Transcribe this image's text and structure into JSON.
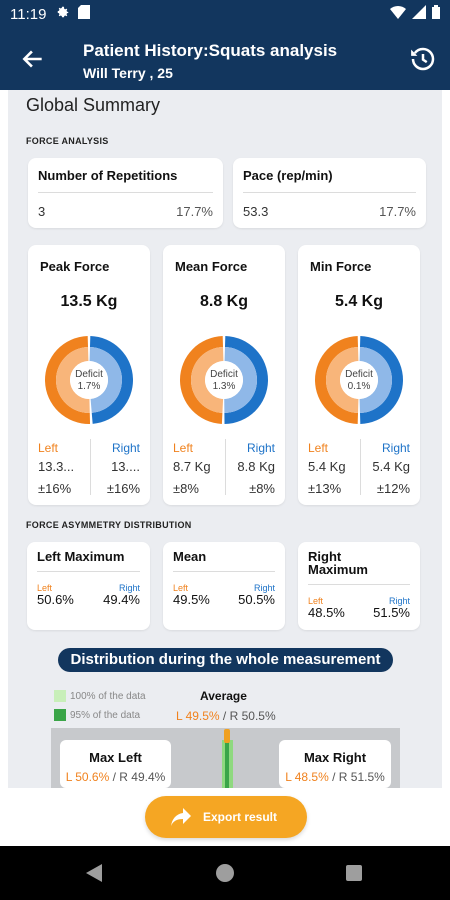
{
  "status_bar": {
    "time": "11:19",
    "icons": [
      "gear-icon",
      "sd-card-icon",
      "wifi-icon",
      "signal-icon",
      "battery-icon"
    ]
  },
  "app_bar": {
    "title": "Patient History:Squats analysis",
    "subtitle": "Will Terry , 25",
    "back_icon": "arrow-left-icon",
    "history_icon": "history-icon"
  },
  "summary": {
    "title": "Global Summary",
    "force_analysis_label": "FORCE ANALYSIS",
    "repetitions": {
      "title": "Number of Repetitions",
      "value": "3",
      "percent": "17.7%"
    },
    "pace": {
      "title": "Pace (rep/min)",
      "value": "53.3",
      "percent": "17.7%"
    },
    "forces": [
      {
        "title": "Peak Force",
        "value": "13.5 Kg",
        "deficit_label": "Deficit",
        "deficit": "1.7%",
        "left_fraction": 0.5085,
        "left_label": "Left",
        "right_label": "Right",
        "left_value": "13.3...",
        "right_value": "13....",
        "left_pct": "±16%",
        "right_pct": "±16%"
      },
      {
        "title": "Mean Force",
        "value": "8.8 Kg",
        "deficit_label": "Deficit",
        "deficit": "1.3%",
        "left_fraction": 0.4971,
        "left_label": "Left",
        "right_label": "Right",
        "left_value": "8.7 Kg",
        "right_value": "8.8 Kg",
        "left_pct": "±8%",
        "right_pct": "±8%"
      },
      {
        "title": "Min Force",
        "value": "5.4 Kg",
        "deficit_label": "Deficit",
        "deficit": "0.1%",
        "left_fraction": 0.5,
        "left_label": "Left",
        "right_label": "Right",
        "left_value": "5.4 Kg",
        "right_value": "5.4 Kg",
        "left_pct": "±13%",
        "right_pct": "±12%"
      }
    ],
    "asymmetry_label": "FORCE ASYMMETRY DISTRIBUTION",
    "asymmetry": [
      {
        "title": "Left Maximum",
        "left_label": "Left",
        "right_label": "Right",
        "left_value": "50.6%",
        "right_value": "49.4%"
      },
      {
        "title": "Mean",
        "left_label": "Left",
        "right_label": "Right",
        "left_value": "49.5%",
        "right_value": "50.5%"
      },
      {
        "title": "Right Maximum",
        "left_label": "Left",
        "right_label": "Right",
        "left_value": "48.5%",
        "right_value": "51.5%"
      }
    ],
    "distribution": {
      "title": "Distribution during the whole measurement",
      "legend_100": "100% of the data",
      "legend_95": "95% of the data",
      "average_title": "Average",
      "average_left": "L 49.5%",
      "average_right": " / R 50.5%",
      "max_left_title": "Max Left",
      "max_left_l": "L 50.6%",
      "max_left_r": " / R 49.4%",
      "max_right_title": "Max Right",
      "max_right_l": "L 48.5%",
      "max_right_r": " / R 51.5%"
    }
  },
  "export_button": {
    "label": "Export result",
    "icon": "share-arrow-icon"
  },
  "colors": {
    "primary": "#12365e",
    "left": "#f0821e",
    "right": "#1e73c8",
    "accent": "#f5a623"
  },
  "nav_bar": {
    "icons": [
      "back-triangle-icon",
      "home-circle-icon",
      "recents-square-icon"
    ]
  }
}
